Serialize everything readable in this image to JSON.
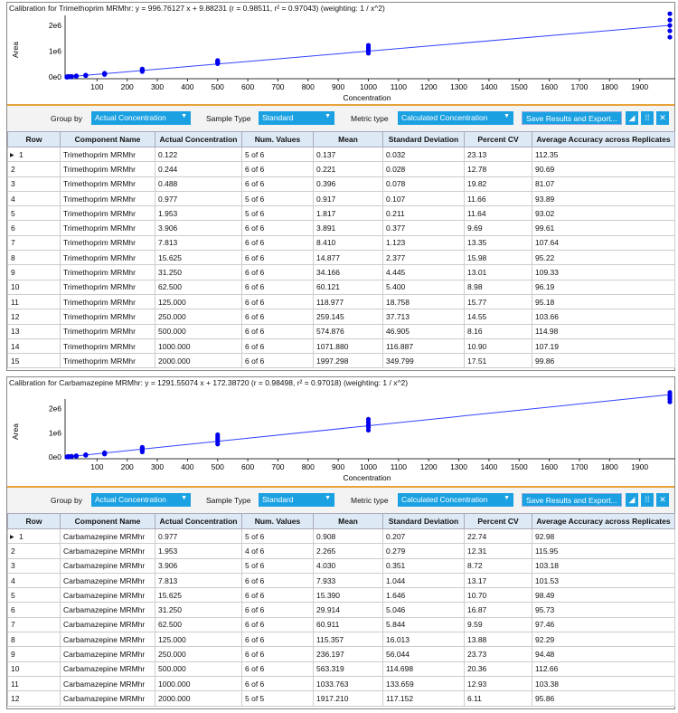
{
  "controls": {
    "group_by_label": "Group by",
    "group_by_value": "Actual Concentration",
    "sample_type_label": "Sample Type",
    "sample_type_value": "Standard",
    "metric_type_label": "Metric type",
    "metric_type_value": "Calculated Concentration",
    "save_button": "Save Results and Export..."
  },
  "columns": [
    "Row",
    "Component Name",
    "Actual Concentration",
    "Num. Values",
    "Mean",
    "Standard Deviation",
    "Percent CV",
    "Average Accuracy across Replicates"
  ],
  "panels": [
    {
      "title": "Calibration for Trimethoprim MRMhr: y = 996.76127 x + 9.88231 (r = 0.98511, r² = 0.97043)  (weighting: 1 / x^2)",
      "rows": [
        [
          "1",
          "Trimethoprim MRMhr",
          "0.122",
          "5 of 6",
          "0.137",
          "0.032",
          "23.13",
          "112.35"
        ],
        [
          "2",
          "Trimethoprim MRMhr",
          "0.244",
          "6 of 6",
          "0.221",
          "0.028",
          "12.78",
          "90.69"
        ],
        [
          "3",
          "Trimethoprim MRMhr",
          "0.488",
          "6 of 6",
          "0.396",
          "0.078",
          "19.82",
          "81.07"
        ],
        [
          "4",
          "Trimethoprim MRMhr",
          "0.977",
          "5 of 6",
          "0.917",
          "0.107",
          "11.66",
          "93.89"
        ],
        [
          "5",
          "Trimethoprim MRMhr",
          "1.953",
          "5 of 6",
          "1.817",
          "0.211",
          "11.64",
          "93.02"
        ],
        [
          "6",
          "Trimethoprim MRMhr",
          "3.906",
          "6 of 6",
          "3.891",
          "0.377",
          "9.69",
          "99.61"
        ],
        [
          "7",
          "Trimethoprim MRMhr",
          "7.813",
          "6 of 6",
          "8.410",
          "1.123",
          "13.35",
          "107.64"
        ],
        [
          "8",
          "Trimethoprim MRMhr",
          "15.625",
          "6 of 6",
          "14.877",
          "2.377",
          "15.98",
          "95.22"
        ],
        [
          "9",
          "Trimethoprim MRMhr",
          "31.250",
          "6 of 6",
          "34.166",
          "4.445",
          "13.01",
          "109.33"
        ],
        [
          "10",
          "Trimethoprim MRMhr",
          "62.500",
          "6 of 6",
          "60.121",
          "5.400",
          "8.98",
          "96.19"
        ],
        [
          "11",
          "Trimethoprim MRMhr",
          "125.000",
          "6 of 6",
          "118.977",
          "18.758",
          "15.77",
          "95.18"
        ],
        [
          "12",
          "Trimethoprim MRMhr",
          "250.000",
          "6 of 6",
          "259.145",
          "37.713",
          "14.55",
          "103.66"
        ],
        [
          "13",
          "Trimethoprim MRMhr",
          "500.000",
          "6 of 6",
          "574.876",
          "46.905",
          "8.16",
          "114.98"
        ],
        [
          "14",
          "Trimethoprim MRMhr",
          "1000.000",
          "6 of 6",
          "1071.880",
          "116.887",
          "10.90",
          "107.19"
        ],
        [
          "15",
          "Trimethoprim MRMhr",
          "2000.000",
          "6 of 6",
          "1997.298",
          "349.799",
          "17.51",
          "99.86"
        ]
      ]
    },
    {
      "title": "Calibration for Carbamazepine MRMhr: y = 1291.55074 x + 172.38720 (r = 0.98498, r² = 0.97018)  (weighting: 1 / x^2)",
      "rows": [
        [
          "1",
          "Carbamazepine MRMhr",
          "0.977",
          "5 of 6",
          "0.908",
          "0.207",
          "22.74",
          "92.98"
        ],
        [
          "2",
          "Carbamazepine MRMhr",
          "1.953",
          "4 of 6",
          "2.265",
          "0.279",
          "12.31",
          "115.95"
        ],
        [
          "3",
          "Carbamazepine MRMhr",
          "3.906",
          "5 of 6",
          "4.030",
          "0.351",
          "8.72",
          "103.18"
        ],
        [
          "4",
          "Carbamazepine MRMhr",
          "7.813",
          "6 of 6",
          "7.933",
          "1.044",
          "13.17",
          "101.53"
        ],
        [
          "5",
          "Carbamazepine MRMhr",
          "15.625",
          "6 of 6",
          "15.390",
          "1.646",
          "10.70",
          "98.49"
        ],
        [
          "6",
          "Carbamazepine MRMhr",
          "31.250",
          "6 of 6",
          "29.914",
          "5.046",
          "16.87",
          "95.73"
        ],
        [
          "7",
          "Carbamazepine MRMhr",
          "62.500",
          "6 of 6",
          "60.911",
          "5.844",
          "9.59",
          "97.46"
        ],
        [
          "8",
          "Carbamazepine MRMhr",
          "125.000",
          "6 of 6",
          "115.357",
          "16.013",
          "13.88",
          "92.29"
        ],
        [
          "9",
          "Carbamazepine MRMhr",
          "250.000",
          "6 of 6",
          "236.197",
          "56.044",
          "23.73",
          "94.48"
        ],
        [
          "10",
          "Carbamazepine MRMhr",
          "500.000",
          "6 of 6",
          "563.319",
          "114.698",
          "20.36",
          "112.66"
        ],
        [
          "11",
          "Carbamazepine MRMhr",
          "1000.000",
          "6 of 6",
          "1033.763",
          "133.659",
          "12.93",
          "103.38"
        ],
        [
          "12",
          "Carbamazepine MRMhr",
          "2000.000",
          "5 of 5",
          "1917.210",
          "117.152",
          "6.11",
          "95.86"
        ]
      ]
    }
  ],
  "chart_data": [
    {
      "type": "scatter",
      "title": "Calibration for Trimethoprim MRMhr",
      "xlabel": "Concentration",
      "ylabel": "Area",
      "xlim": [
        0,
        2000
      ],
      "ylim": [
        0,
        2400000
      ],
      "xticks": [
        "100",
        "200",
        "300",
        "400",
        "500",
        "600",
        "700",
        "800",
        "900",
        "1000",
        "1100",
        "1200",
        "1300",
        "1400",
        "1500",
        "1600",
        "1700",
        "1800",
        "1900"
      ],
      "yticks": [
        "0e0",
        "1e6",
        "2e6"
      ],
      "slope": 996.76127,
      "intercept": 9.88231,
      "point_color": "#0000ee"
    },
    {
      "type": "scatter",
      "title": "Calibration for Carbamazepine MRMhr",
      "xlabel": "Concentration",
      "ylabel": "Area",
      "xlim": [
        0,
        2000
      ],
      "ylim": [
        0,
        2700000
      ],
      "xticks": [
        "100",
        "200",
        "300",
        "400",
        "500",
        "600",
        "700",
        "800",
        "900",
        "1000",
        "1100",
        "1200",
        "1300",
        "1400",
        "1500",
        "1600",
        "1700",
        "1800",
        "1900"
      ],
      "yticks": [
        "0e0",
        "1e6",
        "2e6"
      ],
      "slope": 1291.55074,
      "intercept": 172.3872,
      "point_color": "#0000ee"
    }
  ]
}
